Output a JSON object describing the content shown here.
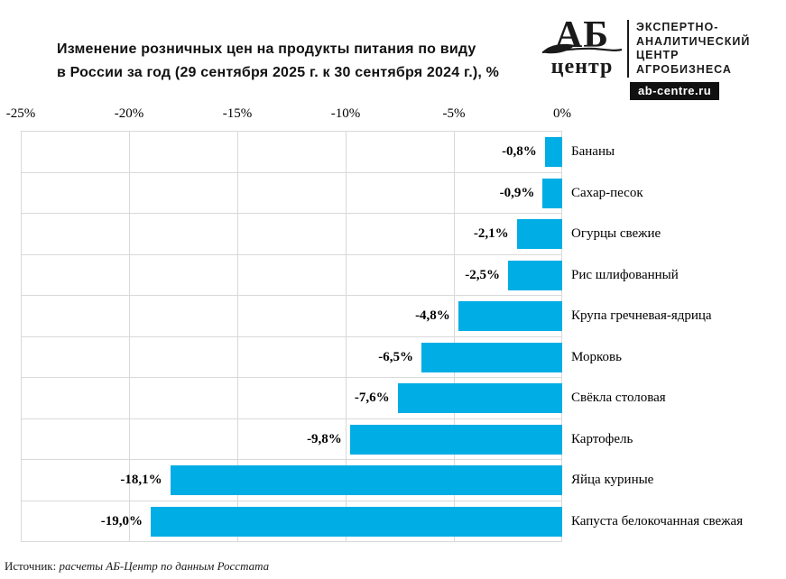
{
  "page": {
    "background": "#ffffff"
  },
  "header": {
    "title_line1": "Изменение розничных цен на продукты питания по виду",
    "title_line2": "в России за год (29 сентября 2025 г. к 30 сентября 2024 г.), %"
  },
  "logo": {
    "mark_top": "АБ",
    "mark_bottom": "центр",
    "leaf_icon": "leaf-icon",
    "lines": [
      "ЭКСПЕРТНО-",
      "АНАЛИТИЧЕСКИЙ",
      "ЦЕНТР",
      "АГРОБИЗНЕСА"
    ],
    "site": "ab-centre.ru"
  },
  "chart_data": {
    "type": "bar",
    "orientation": "horizontal",
    "title": "Изменение розничных цен на продукты питания по виду в России за год (29 сентября 2025 г. к 30 сентября 2024 г.), %",
    "categories": [
      "Бананы",
      "Сахар-песок",
      "Огурцы свежие",
      "Рис шлифованный",
      "Крупа гречневая-ядрица",
      "Морковь",
      "Свёкла столовая",
      "Картофель",
      "Яйца куриные",
      "Капуста белокочанная свежая"
    ],
    "values": [
      -0.8,
      -0.9,
      -2.1,
      -2.5,
      -4.8,
      -6.5,
      -7.6,
      -9.8,
      -18.1,
      -19.0
    ],
    "value_labels": [
      "-0,8%",
      "-0,9%",
      "-2,1%",
      "-2,5%",
      "-4,8%",
      "-6,5%",
      "-7,6%",
      "-9,8%",
      "-18,1%",
      "-19,0%"
    ],
    "xlim": [
      -25,
      0
    ],
    "x_ticks": [
      "-25%",
      "-20%",
      "-15%",
      "-10%",
      "-5%",
      "0%"
    ],
    "x_tick_values": [
      -25,
      -20,
      -15,
      -10,
      -5,
      0
    ],
    "grid": true,
    "legend": false,
    "bar_color": "#00ADE4",
    "grid_color": "#d9d9d9"
  },
  "source": {
    "prefix": "Источник:",
    "text": "расчеты АБ-Центр по данным Росстата"
  }
}
